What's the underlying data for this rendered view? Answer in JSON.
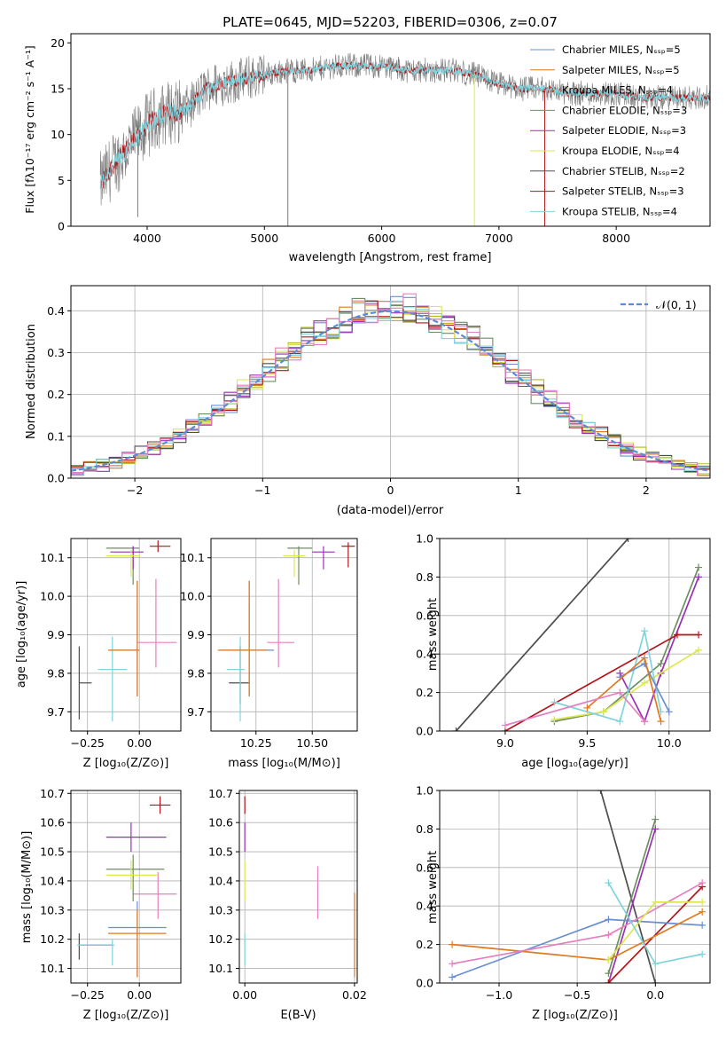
{
  "colors": {
    "chabrier_miles": "#6a8fd0",
    "salpeter_miles": "#e07a1f",
    "kroupa_miles": "#b8b520",
    "chabrier_elodie": "#6e8d62",
    "salpeter_elodie": "#9b2fb6",
    "kroupa_elodie": "#dde84e",
    "chabrier_stelib": "#4d4d4d",
    "salpeter_stelib": "#b2151a",
    "kroupa_stelib": "#7fd4dc",
    "pink": "#e67fc0",
    "normal_curve": "#5b8bd6"
  },
  "chart_data": [
    {
      "id": "spectrum",
      "type": "line",
      "title": "PLATE=0645, MJD=52203, FIBERID=0306, z=0.07",
      "xlabel": "wavelength [Angstrom, rest frame]",
      "ylabel": "Flux [fλ10⁻¹⁷ erg cm⁻² s⁻¹ A⁻¹]",
      "xlim": [
        3350,
        8800
      ],
      "ylim": [
        0,
        21
      ],
      "xticks": [
        4000,
        5000,
        6000,
        7000,
        8000
      ],
      "yticks": [
        0,
        5,
        10,
        15,
        20
      ],
      "legend_position": "top-right",
      "legend": [
        {
          "label": "Chabrier MILES, Nₛₛₚ=5",
          "color": "#6a8fd0"
        },
        {
          "label": "Salpeter MILES, Nₛₛₚ=5",
          "color": "#e07a1f"
        },
        {
          "label": "Kroupa MILES, Nₛₛₚ=4",
          "color": "#b8b520"
        },
        {
          "label": "Chabrier ELODIE, Nₛₛₚ=3",
          "color": "#6e8d62"
        },
        {
          "label": "Salpeter ELODIE, Nₛₛₚ=3",
          "color": "#9b2fb6"
        },
        {
          "label": "Kroupa ELODIE, Nₛₛₚ=4",
          "color": "#dde84e"
        },
        {
          "label": "Chabrier STELIB, Nₛₛₚ=2",
          "color": "#4d4d4d"
        },
        {
          "label": "Salpeter STELIB, Nₛₛₚ=3",
          "color": "#b2151a"
        },
        {
          "label": "Kroupa STELIB, Nₛₛₚ=4",
          "color": "#7fd4dc"
        }
      ],
      "continuum": {
        "x": [
          3600,
          3700,
          3800,
          3900,
          4000,
          4100,
          4200,
          4300,
          4400,
          4500,
          4600,
          4800,
          5000,
          5200,
          5400,
          5600,
          5800,
          6000,
          6200,
          6400,
          6600,
          6800,
          7000,
          7200,
          7400,
          7600,
          7800,
          8000,
          8200,
          8400,
          8600,
          8800
        ],
        "y": [
          4.5,
          6.5,
          8.0,
          9.5,
          11.0,
          12.0,
          12.5,
          12.5,
          13.5,
          15.0,
          15.5,
          16.0,
          16.5,
          17.0,
          17.0,
          17.5,
          17.5,
          17.5,
          17.0,
          17.0,
          17.0,
          16.5,
          15.5,
          15.0,
          15.0,
          14.5,
          14.5,
          14.5,
          14.0,
          14.0,
          14.0,
          14.0
        ]
      },
      "absorption_spikes": [
        {
          "x": 3920,
          "y": 1.0
        },
        {
          "x": 5200,
          "y": 0.0
        },
        {
          "x": 6790,
          "y": 0.0
        },
        {
          "x": 7390,
          "y": 0.0
        }
      ]
    },
    {
      "id": "residuals",
      "type": "histogram",
      "xlabel": "(data-model)/error",
      "ylabel": "Normed distribution",
      "xlim": [
        -2.5,
        2.5
      ],
      "ylim": [
        0,
        0.46
      ],
      "xticks": [
        -2,
        -1,
        0,
        1,
        2
      ],
      "yticks": [
        0.0,
        0.1,
        0.2,
        0.3,
        0.4
      ],
      "xtick_labels": [
        "−2",
        "−1",
        "0",
        "1",
        "2"
      ],
      "ytick_labels": [
        "0.0",
        "0.1",
        "0.2",
        "0.3",
        "0.4"
      ],
      "grid": true,
      "legend_position": "top-right",
      "legend": [
        {
          "label": "𝒩(0, 1)",
          "style": "dashed"
        }
      ],
      "bin_width": 0.1,
      "reference_curve": "normal(0,1) pdf"
    },
    {
      "id": "age_vs_Z",
      "type": "errorbar",
      "xlabel": "Z [log₁₀(Z/Z⊙)]",
      "ylabel": "age  [log₁₀(age/yr)]",
      "xlim": [
        -0.33,
        0.2
      ],
      "ylim": [
        9.65,
        10.15
      ],
      "xticks": [
        -0.25,
        0.0
      ],
      "xtick_labels": [
        "−0.25",
        "0.00"
      ],
      "yticks": [
        9.7,
        9.8,
        9.9,
        10.0,
        10.1
      ],
      "ytick_labels": [
        "9.7",
        "9.8",
        "9.9",
        "10.0",
        "10.1"
      ],
      "grid": true,
      "points": [
        {
          "x": -0.29,
          "xlo": -0.29,
          "xhi": -0.23,
          "y": 9.775,
          "ylo": 9.68,
          "yhi": 9.87,
          "color": "#4d4d4d"
        },
        {
          "x": -0.13,
          "xlo": -0.2,
          "xhi": -0.06,
          "y": 9.81,
          "ylo": 9.675,
          "yhi": 9.895,
          "color": "#7fd4dc"
        },
        {
          "x": -0.01,
          "xlo": -0.15,
          "xhi": 0.0,
          "y": 9.86,
          "ylo": 9.74,
          "yhi": 10.04,
          "color": "#6a8fd0"
        },
        {
          "x": -0.01,
          "xlo": -0.15,
          "xhi": 0.0,
          "y": 9.86,
          "ylo": 9.74,
          "yhi": 10.04,
          "color": "#e07a1f"
        },
        {
          "x": 0.08,
          "xlo": -0.01,
          "xhi": 0.18,
          "y": 9.88,
          "ylo": 9.815,
          "yhi": 10.045,
          "color": "#e67fc0"
        },
        {
          "x": -0.03,
          "xlo": -0.16,
          "xhi": 0.0,
          "y": 10.125,
          "ylo": 10.03,
          "yhi": 10.13,
          "color": "#6e8d62"
        },
        {
          "x": -0.03,
          "xlo": -0.14,
          "xhi": 0.02,
          "y": 10.115,
          "ylo": 10.07,
          "yhi": 10.13,
          "color": "#9b2fb6"
        },
        {
          "x": -0.04,
          "xlo": -0.16,
          "xhi": 0.0,
          "y": 10.105,
          "ylo": 10.05,
          "yhi": 10.12,
          "color": "#dde84e"
        },
        {
          "x": 0.09,
          "xlo": 0.05,
          "xhi": 0.15,
          "y": 10.13,
          "ylo": 10.115,
          "yhi": 10.145,
          "color": "#b2151a"
        }
      ]
    },
    {
      "id": "age_vs_mass",
      "type": "errorbar",
      "xlabel": "mass [log₁₀(M/M⊙)]",
      "ylabel": "",
      "xlim": [
        10.05,
        10.7
      ],
      "ylim": [
        9.65,
        10.15
      ],
      "xticks": [
        10.25,
        10.5
      ],
      "xtick_labels": [
        "10.25",
        "10.50"
      ],
      "yticks": [
        9.7,
        9.8,
        9.9,
        10.0,
        10.1
      ],
      "ytick_labels": [
        "9.7",
        "9.8",
        "9.9",
        "10.0",
        "10.1"
      ],
      "grid": true,
      "points": [
        {
          "x": 10.18,
          "xlo": 10.13,
          "xhi": 10.22,
          "y": 9.775,
          "ylo": 9.72,
          "yhi": 9.87,
          "color": "#4d4d4d"
        },
        {
          "x": 10.18,
          "xlo": 10.12,
          "xhi": 10.2,
          "y": 9.81,
          "ylo": 9.675,
          "yhi": 9.895,
          "color": "#7fd4dc"
        },
        {
          "x": 10.22,
          "xlo": 10.09,
          "xhi": 10.33,
          "y": 9.86,
          "ylo": 9.74,
          "yhi": 10.04,
          "color": "#6a8fd0"
        },
        {
          "x": 10.22,
          "xlo": 10.08,
          "xhi": 10.3,
          "y": 9.86,
          "ylo": 9.74,
          "yhi": 10.04,
          "color": "#e07a1f"
        },
        {
          "x": 10.35,
          "xlo": 10.3,
          "xhi": 10.42,
          "y": 9.88,
          "ylo": 9.815,
          "yhi": 10.045,
          "color": "#e67fc0"
        },
        {
          "x": 10.44,
          "xlo": 10.39,
          "xhi": 10.5,
          "y": 10.125,
          "ylo": 10.03,
          "yhi": 10.13,
          "color": "#6e8d62"
        },
        {
          "x": 10.55,
          "xlo": 10.5,
          "xhi": 10.6,
          "y": 10.115,
          "ylo": 10.07,
          "yhi": 10.13,
          "color": "#9b2fb6"
        },
        {
          "x": 10.42,
          "xlo": 10.37,
          "xhi": 10.47,
          "y": 10.105,
          "ylo": 10.05,
          "yhi": 10.12,
          "color": "#dde84e"
        },
        {
          "x": 10.66,
          "xlo": 10.63,
          "xhi": 10.69,
          "y": 10.13,
          "ylo": 10.075,
          "yhi": 10.14,
          "color": "#b2151a"
        }
      ]
    },
    {
      "id": "weight_vs_age",
      "type": "line",
      "xlabel": "age  [log₁₀(age/yr)]",
      "ylabel": "mass weight",
      "xlim": [
        8.6,
        10.25
      ],
      "ylim": [
        0,
        1
      ],
      "xticks": [
        9.0,
        9.5,
        10.0
      ],
      "xtick_labels": [
        "9.0",
        "9.5",
        "10.0"
      ],
      "yticks": [
        0,
        0.2,
        0.4,
        0.6,
        0.8,
        1.0
      ],
      "ytick_labels": [
        "0.0",
        "0.2",
        "0.4",
        "0.6",
        "0.8",
        "1.0"
      ],
      "grid": true,
      "series": [
        {
          "color": "#4d4d4d",
          "x": [
            8.7,
            9.75
          ],
          "y": [
            0.0,
            1.0
          ]
        },
        {
          "color": "#6e8d62",
          "x": [
            9.3,
            9.6,
            9.95,
            10.18
          ],
          "y": [
            0.05,
            0.1,
            0.35,
            0.85
          ]
        },
        {
          "color": "#9b2fb6",
          "x": [
            9.7,
            9.85,
            9.95,
            10.18
          ],
          "y": [
            0.3,
            0.05,
            0.3,
            0.8
          ]
        },
        {
          "color": "#b2151a",
          "x": [
            9.0,
            10.05,
            10.18
          ],
          "y": [
            0.0,
            0.5,
            0.5
          ]
        },
        {
          "color": "#dde84e",
          "x": [
            9.3,
            9.6,
            9.85,
            10.18
          ],
          "y": [
            0.06,
            0.1,
            0.25,
            0.42
          ]
        },
        {
          "color": "#7fd4dc",
          "x": [
            9.3,
            9.7,
            9.85,
            9.95
          ],
          "y": [
            0.15,
            0.05,
            0.52,
            0.1
          ]
        },
        {
          "color": "#6a8fd0",
          "x": [
            9.7,
            9.85,
            10.0
          ],
          "y": [
            0.28,
            0.35,
            0.1
          ]
        },
        {
          "color": "#e07a1f",
          "x": [
            9.5,
            9.85,
            9.95
          ],
          "y": [
            0.12,
            0.38,
            0.05
          ]
        },
        {
          "color": "#e67fc0",
          "x": [
            9.0,
            9.7,
            9.85
          ],
          "y": [
            0.03,
            0.2,
            0.05
          ]
        }
      ]
    },
    {
      "id": "mass_vs_Z",
      "type": "errorbar",
      "xlabel": "Z [log₁₀(Z/Z⊙)]",
      "ylabel": "mass [log₁₀(M/M⊙)]",
      "xlim": [
        -0.33,
        0.2
      ],
      "ylim": [
        10.05,
        10.71
      ],
      "xticks": [
        -0.25,
        0.0
      ],
      "xtick_labels": [
        "−0.25",
        "0.00"
      ],
      "yticks": [
        10.1,
        10.2,
        10.3,
        10.4,
        10.5,
        10.6,
        10.7
      ],
      "ytick_labels": [
        "10.1",
        "10.2",
        "10.3",
        "10.4",
        "10.5",
        "10.6",
        "10.7"
      ],
      "grid": true,
      "points": [
        {
          "x": -0.29,
          "xlo": -0.29,
          "xhi": -0.13,
          "y": 10.18,
          "ylo": 10.13,
          "yhi": 10.22,
          "color": "#4d4d4d"
        },
        {
          "x": -0.13,
          "xlo": -0.3,
          "xhi": -0.12,
          "y": 10.18,
          "ylo": 10.11,
          "yhi": 10.2,
          "color": "#7fd4dc"
        },
        {
          "x": -0.01,
          "xlo": -0.15,
          "xhi": 0.13,
          "y": 10.24,
          "ylo": 10.07,
          "yhi": 10.33,
          "color": "#6a8fd0"
        },
        {
          "x": -0.01,
          "xlo": -0.15,
          "xhi": 0.13,
          "y": 10.22,
          "ylo": 10.07,
          "yhi": 10.3,
          "color": "#e07a1f"
        },
        {
          "x": 0.09,
          "xlo": -0.03,
          "xhi": 0.18,
          "y": 10.355,
          "ylo": 10.27,
          "yhi": 10.43,
          "color": "#e67fc0"
        },
        {
          "x": -0.03,
          "xlo": -0.16,
          "xhi": 0.12,
          "y": 10.44,
          "ylo": 10.33,
          "yhi": 10.49,
          "color": "#6e8d62"
        },
        {
          "x": -0.04,
          "xlo": -0.16,
          "xhi": 0.13,
          "y": 10.55,
          "ylo": 10.5,
          "yhi": 10.6,
          "color": "#9b2fb6"
        },
        {
          "x": -0.04,
          "xlo": -0.16,
          "xhi": 0.09,
          "y": 10.42,
          "ylo": 10.37,
          "yhi": 10.47,
          "color": "#dde84e"
        },
        {
          "x": 0.1,
          "xlo": 0.05,
          "xhi": 0.15,
          "y": 10.66,
          "ylo": 10.63,
          "yhi": 10.69,
          "color": "#b2151a"
        }
      ]
    },
    {
      "id": "mass_vs_ebv",
      "type": "errorbar",
      "xlabel": "E(B-V)",
      "ylabel": "",
      "xlim": [
        -0.001,
        0.0205
      ],
      "ylim": [
        10.05,
        10.71
      ],
      "xticks": [
        0.0,
        0.02
      ],
      "xtick_labels": [
        "0.00",
        "0.02"
      ],
      "yticks": [
        10.1,
        10.2,
        10.3,
        10.4,
        10.5,
        10.6,
        10.7
      ],
      "ytick_labels": [
        "10.1",
        "10.2",
        "10.3",
        "10.4",
        "10.5",
        "10.6",
        "10.7"
      ],
      "grid": true,
      "points": [
        {
          "x": 0.0,
          "y": 10.66,
          "ylo": 10.63,
          "yhi": 10.69,
          "color": "#b2151a"
        },
        {
          "x": 0.0,
          "y": 10.55,
          "ylo": 10.5,
          "yhi": 10.6,
          "color": "#9b2fb6"
        },
        {
          "x": 0.0,
          "y": 10.42,
          "ylo": 10.33,
          "yhi": 10.47,
          "color": "#dde84e"
        },
        {
          "x": 0.0,
          "y": 10.18,
          "ylo": 10.11,
          "yhi": 10.22,
          "color": "#7fd4dc"
        },
        {
          "x": 0.0133,
          "y": 10.355,
          "ylo": 10.27,
          "yhi": 10.45,
          "color": "#e67fc0"
        },
        {
          "x": 0.02,
          "y": 10.22,
          "ylo": 10.07,
          "yhi": 10.36,
          "color": "#e07a1f"
        }
      ]
    },
    {
      "id": "weight_vs_Z",
      "type": "line",
      "xlabel": "Z [log₁₀(Z/Z⊙)]",
      "ylabel": "mass weight",
      "xlim": [
        -1.38,
        0.35
      ],
      "ylim": [
        0,
        1
      ],
      "xticks": [
        -1.0,
        -0.5,
        0.0
      ],
      "xtick_labels": [
        "−1.0",
        "−0.5",
        "0.0"
      ],
      "yticks": [
        0,
        0.2,
        0.4,
        0.6,
        0.8,
        1.0
      ],
      "ytick_labels": [
        "0.0",
        "0.2",
        "0.4",
        "0.6",
        "0.8",
        "1.0"
      ],
      "grid": true,
      "series": [
        {
          "color": "#4d4d4d",
          "x": [
            -0.35,
            0.0
          ],
          "y": [
            1.0,
            0.0
          ]
        },
        {
          "color": "#6e8d62",
          "x": [
            -0.3,
            0.0
          ],
          "y": [
            0.05,
            0.85
          ]
        },
        {
          "color": "#9b2fb6",
          "x": [
            -0.3,
            0.0
          ],
          "y": [
            0.0,
            0.8
          ]
        },
        {
          "color": "#b2151a",
          "x": [
            -0.3,
            0.3
          ],
          "y": [
            0.0,
            0.5
          ]
        },
        {
          "color": "#6a8fd0",
          "x": [
            -1.3,
            -0.3,
            0.3
          ],
          "y": [
            0.03,
            0.33,
            0.3
          ]
        },
        {
          "color": "#e07a1f",
          "x": [
            -1.3,
            -0.3,
            0.3
          ],
          "y": [
            0.2,
            0.12,
            0.37
          ]
        },
        {
          "color": "#e67fc0",
          "x": [
            -1.3,
            -0.3,
            0.3
          ],
          "y": [
            0.1,
            0.25,
            0.52
          ]
        },
        {
          "color": "#dde84e",
          "x": [
            -0.3,
            0.0,
            0.3
          ],
          "y": [
            0.12,
            0.42,
            0.42
          ]
        },
        {
          "color": "#7fd4dc",
          "x": [
            -0.3,
            0.0,
            0.3
          ],
          "y": [
            0.52,
            0.1,
            0.15
          ]
        }
      ]
    }
  ]
}
